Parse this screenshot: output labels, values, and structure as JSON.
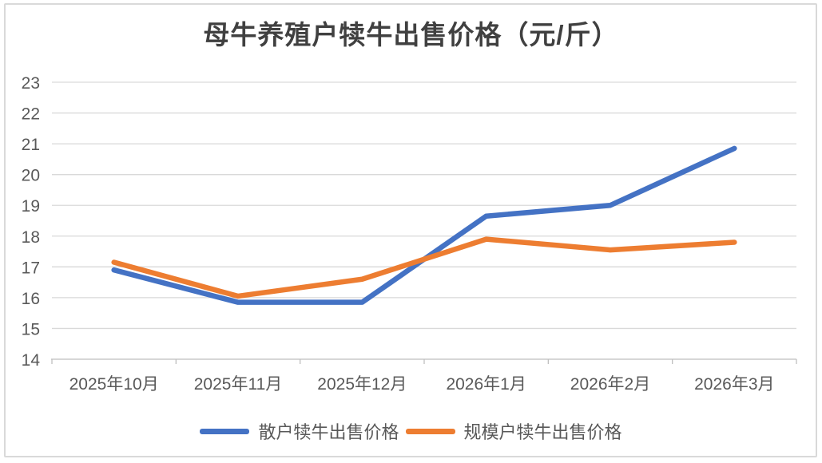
{
  "chart_data": {
    "type": "line",
    "title": "母牛养殖户犊牛出售价格（元/斤）",
    "categories": [
      "2025年10月",
      "2025年11月",
      "2025年12月",
      "2026年1月",
      "2026年2月",
      "2026年3月"
    ],
    "series": [
      {
        "name": "散户犊牛出售价格",
        "color": "#4472C4",
        "values": [
          16.9,
          15.85,
          15.85,
          18.65,
          19.0,
          20.85
        ]
      },
      {
        "name": "规模户犊牛出售价格",
        "color": "#ED7D31",
        "values": [
          17.15,
          16.05,
          16.6,
          17.9,
          17.55,
          17.8
        ]
      }
    ],
    "ylim": [
      14,
      23
    ],
    "ytick_step": 1,
    "yticks": [
      14,
      15,
      16,
      17,
      18,
      19,
      20,
      21,
      22,
      23
    ],
    "grid": true,
    "legend_position": "bottom",
    "gridline_color": "#D9D9D9",
    "axis_color": "#BFBFBF",
    "label_color": "#595959",
    "title_color": "#404040"
  }
}
